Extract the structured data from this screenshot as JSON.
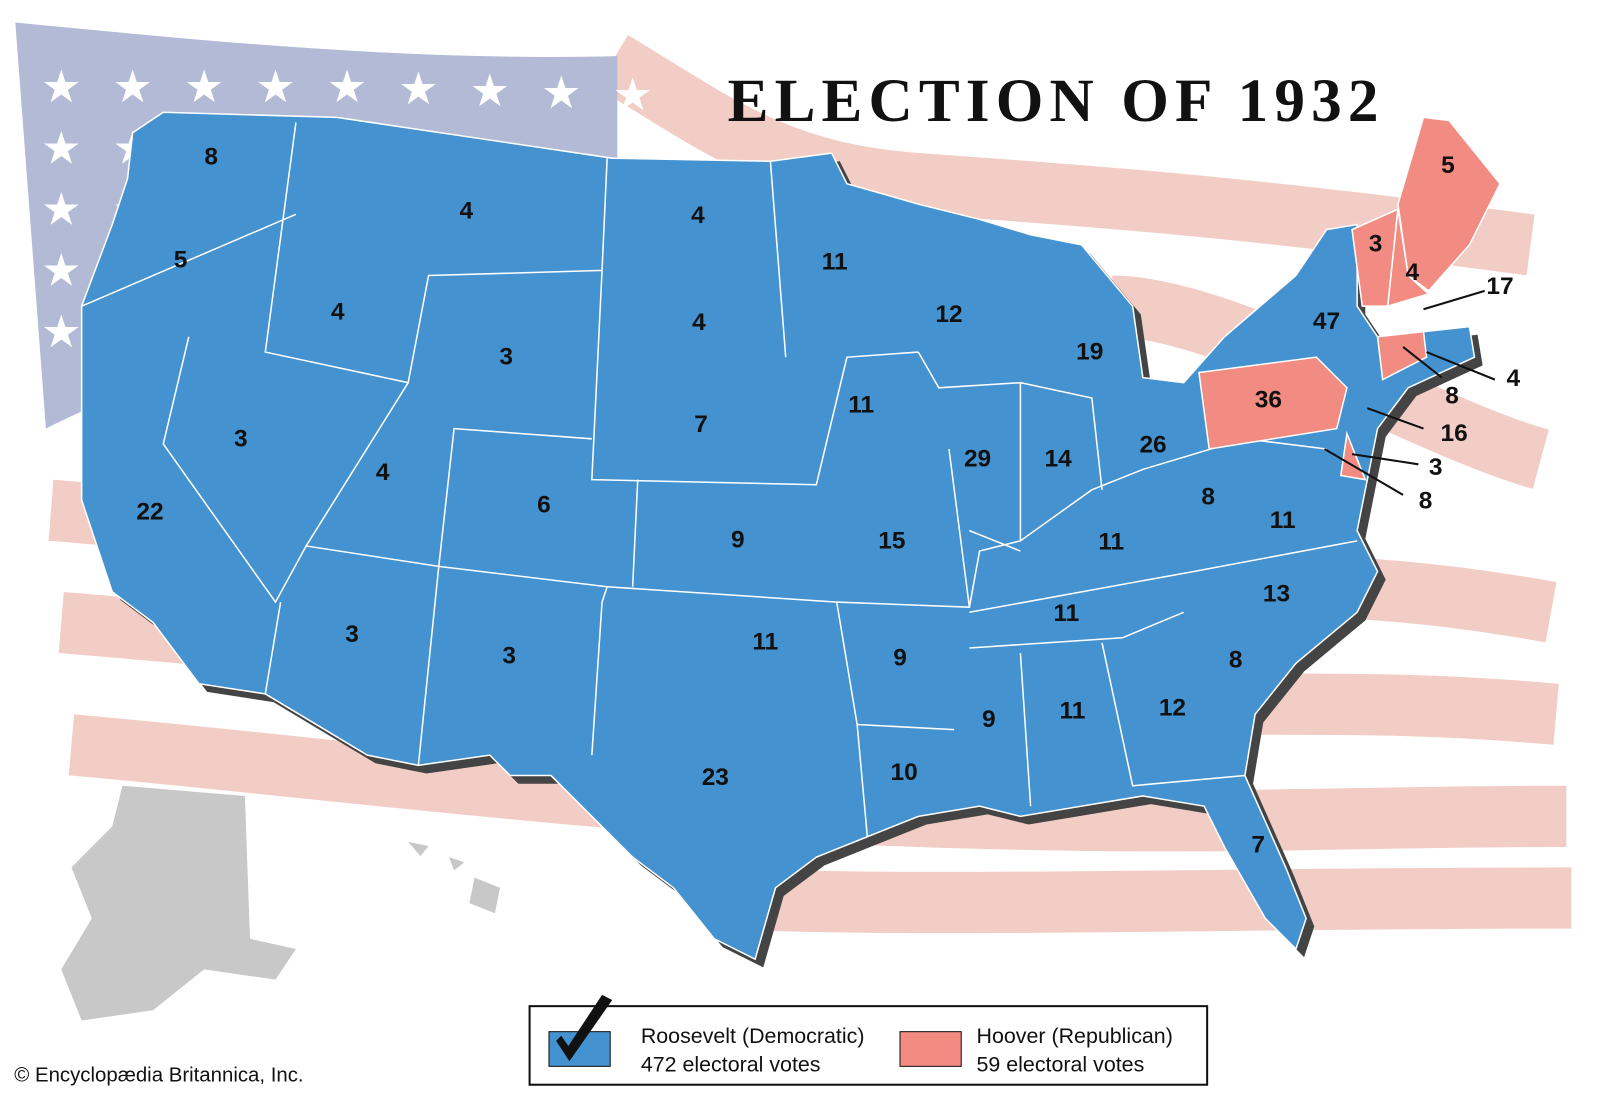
{
  "title": "ELECTION OF 1932",
  "states": [
    {
      "votes": 8
    },
    {
      "votes": 5
    },
    {
      "votes": 4
    },
    {
      "votes": 4
    },
    {
      "votes": 4
    },
    {
      "votes": 4
    },
    {
      "votes": 3
    },
    {
      "votes": 3
    },
    {
      "votes": 22
    },
    {
      "votes": 4
    },
    {
      "votes": 6
    },
    {
      "votes": 7
    },
    {
      "votes": 11
    },
    {
      "votes": 12
    },
    {
      "votes": 19
    },
    {
      "votes": 11
    },
    {
      "votes": 29
    },
    {
      "votes": 14
    },
    {
      "votes": 26
    },
    {
      "votes": 9
    },
    {
      "votes": 15
    },
    {
      "votes": 3
    },
    {
      "votes": 3
    },
    {
      "votes": 11
    },
    {
      "votes": 23
    },
    {
      "votes": 9
    },
    {
      "votes": 10
    },
    {
      "votes": 9
    },
    {
      "votes": 11
    },
    {
      "votes": 12
    },
    {
      "votes": 7
    },
    {
      "votes": 8
    },
    {
      "votes": 13
    },
    {
      "votes": 11
    },
    {
      "votes": 11
    },
    {
      "votes": 8
    },
    {
      "votes": 11
    },
    {
      "votes": 47
    },
    {
      "votes": 36
    },
    {
      "votes": 3
    },
    {
      "votes": 4
    },
    {
      "votes": 5
    },
    {
      "votes": 17
    },
    {
      "votes": 4
    },
    {
      "votes": 8
    },
    {
      "votes": 16
    },
    {
      "votes": 3
    },
    {
      "votes": 8
    }
  ],
  "legend": [
    {
      "name": "Roosevelt (Democratic)",
      "votes": "472 electoral votes",
      "color": "#4592d0"
    },
    {
      "name": "Hoover (Republican)",
      "votes": "59 electoral votes",
      "color": "#f28b82"
    }
  ],
  "credit": "© Encyclopædia Britannica, Inc."
}
